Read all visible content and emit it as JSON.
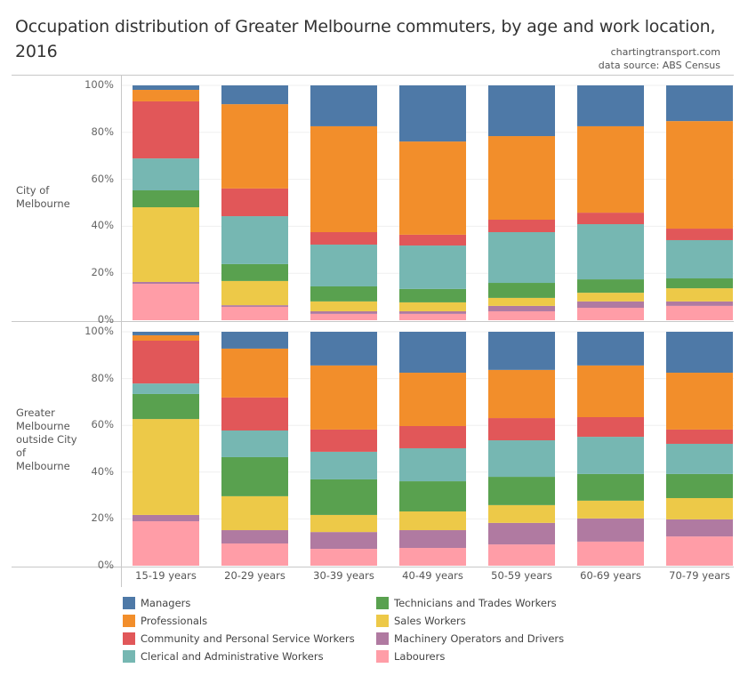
{
  "header": {
    "title": "Occupation distribution of Greater Melbourne commuters, by age and work location, 2016",
    "credit1": "chartingtransport.com",
    "credit2": "data source: ABS Census"
  },
  "chart_data": {
    "type": "bar",
    "stacked": true,
    "normalized": true,
    "title": "Occupation distribution of Greater Melbourne commuters, by age and work location, 2016",
    "xlabel": "",
    "ylabel": "",
    "ylim": [
      0,
      100
    ],
    "yticks": [
      "0%",
      "20%",
      "40%",
      "60%",
      "80%",
      "100%"
    ],
    "grid": true,
    "legend_position": "bottom",
    "categories": [
      "15-19 years",
      "20-29 years",
      "30-39 years",
      "40-49 years",
      "50-59 years",
      "60-69 years",
      "70-79 years"
    ],
    "series": [
      {
        "name": "Managers",
        "color": "#4e79a7"
      },
      {
        "name": "Professionals",
        "color": "#f28e2b"
      },
      {
        "name": "Community and Personal Service Workers",
        "color": "#e15759"
      },
      {
        "name": "Clerical and Administrative Workers",
        "color": "#76b7b2"
      },
      {
        "name": "Technicians and Trades Workers",
        "color": "#59a14f"
      },
      {
        "name": "Sales Workers",
        "color": "#edc948"
      },
      {
        "name": "Machinery Operators and Drivers",
        "color": "#b07aa1"
      },
      {
        "name": "Labourers",
        "color": "#ff9da7"
      }
    ],
    "stack_order_bottom_to_top": [
      "Labourers",
      "Machinery Operators and Drivers",
      "Sales Workers",
      "Technicians and Trades Workers",
      "Clerical and Administrative Workers",
      "Community and Personal Service Workers",
      "Professionals",
      "Managers"
    ],
    "panels": [
      {
        "label": "City of Melbourne",
        "values": {
          "Managers": [
            1.9,
            8.0,
            17.4,
            23.9,
            21.6,
            17.4,
            15.2
          ],
          "Professionals": [
            4.9,
            35.9,
            45.1,
            39.7,
            35.6,
            36.8,
            45.8
          ],
          "Community and Personal Service Workers": [
            24.3,
            11.8,
            5.3,
            4.6,
            5.3,
            4.9,
            4.9
          ],
          "Clerical and Administrative Workers": [
            13.6,
            20.4,
            17.8,
            18.5,
            21.6,
            23.5,
            16.3
          ],
          "Technicians and Trades Workers": [
            7.2,
            7.2,
            6.4,
            5.7,
            6.4,
            5.7,
            4.2
          ],
          "Sales Workers": [
            31.8,
            10.3,
            4.2,
            3.8,
            3.4,
            3.7,
            5.6
          ],
          "Machinery Operators and Drivers": [
            0.8,
            0.7,
            1.1,
            1.1,
            2.3,
            2.7,
            1.9
          ],
          "Labourers": [
            15.5,
            5.7,
            2.7,
            2.7,
            3.8,
            5.3,
            6.1
          ]
        }
      },
      {
        "label": "Greater Melbourne outside City of Melbourne",
        "values": {
          "Managers": [
            1.5,
            7.2,
            14.4,
            17.5,
            16.3,
            14.4,
            17.5
          ],
          "Professionals": [
            2.3,
            20.9,
            27.4,
            22.8,
            20.6,
            22.1,
            24.3
          ],
          "Community and Personal Service Workers": [
            18.3,
            14.1,
            9.5,
            9.5,
            9.5,
            8.4,
            6.1
          ],
          "Clerical and Administrative Workers": [
            4.5,
            11.4,
            11.8,
            14.1,
            15.6,
            15.9,
            12.9
          ],
          "Technicians and Trades Workers": [
            10.7,
            16.7,
            15.2,
            12.9,
            12.1,
            11.4,
            10.3
          ],
          "Sales Workers": [
            41.0,
            14.5,
            7.3,
            8.0,
            7.6,
            7.6,
            9.1
          ],
          "Machinery Operators and Drivers": [
            2.7,
            5.7,
            7.2,
            7.6,
            9.2,
            9.9,
            7.3
          ],
          "Labourers": [
            19.0,
            9.5,
            7.2,
            7.6,
            9.1,
            10.3,
            12.5
          ]
        }
      }
    ]
  },
  "panels": {
    "top_label_line1": "City of",
    "top_label_line2": "Melbourne",
    "bottom_label_line1": "Greater",
    "bottom_label_line2": "Melbourne",
    "bottom_label_line3": "outside City",
    "bottom_label_line4": "of",
    "bottom_label_line5": "Melbourne"
  },
  "legend": [
    {
      "label": "Managers",
      "color": "#4e79a7"
    },
    {
      "label": "Professionals",
      "color": "#f28e2b"
    },
    {
      "label": "Community and Personal Service Workers",
      "color": "#e15759"
    },
    {
      "label": "Clerical and Administrative Workers",
      "color": "#76b7b2"
    },
    {
      "label": "Technicians and Trades Workers",
      "color": "#59a14f"
    },
    {
      "label": "Sales Workers",
      "color": "#edc948"
    },
    {
      "label": "Machinery Operators and Drivers",
      "color": "#b07aa1"
    },
    {
      "label": "Labourers",
      "color": "#ff9da7"
    }
  ]
}
